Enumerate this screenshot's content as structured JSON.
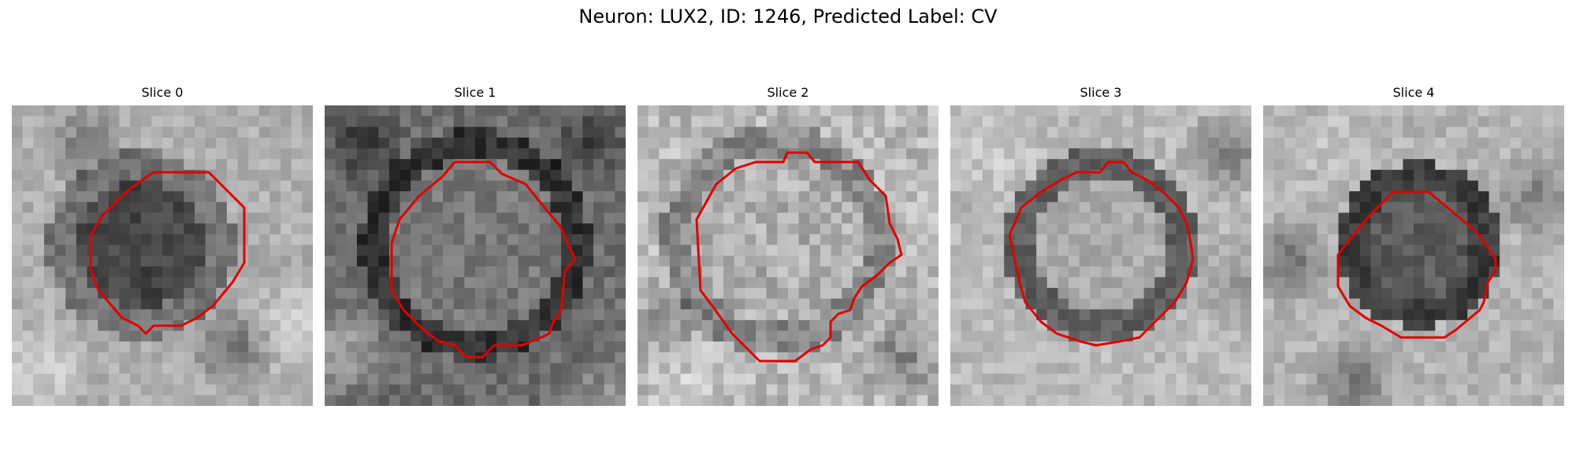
{
  "figure": {
    "title": "Neuron: LUX2, ID: 1246, Predicted Label: CV"
  },
  "contour_color": "#e00000",
  "panels": [
    {
      "title": "Slice 0"
    },
    {
      "title": "Slice 1"
    },
    {
      "title": "Slice 2"
    },
    {
      "title": "Slice 3"
    },
    {
      "title": "Slice 4"
    }
  ]
}
